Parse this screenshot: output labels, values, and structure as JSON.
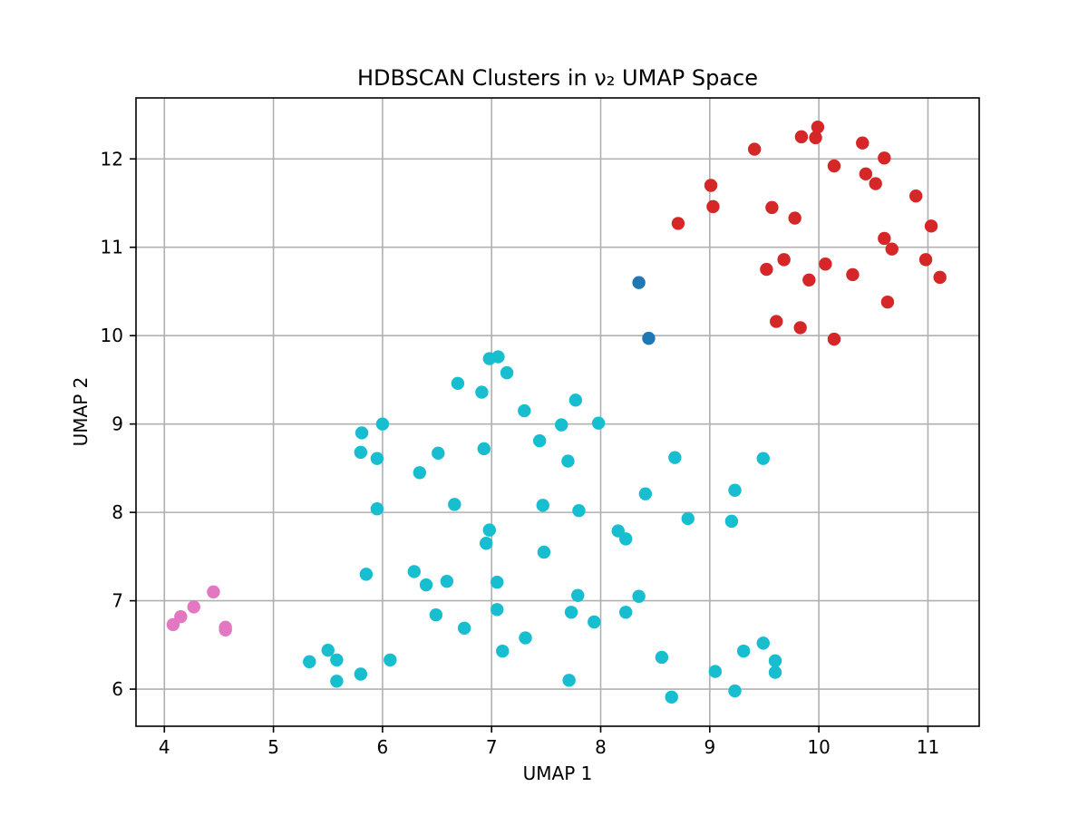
{
  "chart_data": {
    "type": "scatter",
    "title": "HDBSCAN Clusters in ν₂ UMAP Space",
    "xlabel": "UMAP 1",
    "ylabel": "UMAP 2",
    "xlim": [
      3.74,
      11.47
    ],
    "ylim": [
      5.58,
      12.69
    ],
    "xticks": [
      4,
      5,
      6,
      7,
      8,
      9,
      10,
      11
    ],
    "yticks": [
      6,
      7,
      8,
      9,
      10,
      11,
      12
    ],
    "grid": true,
    "legend": "none",
    "series": [
      {
        "color": "#1f77b4",
        "points": [
          [
            8.35,
            10.6
          ],
          [
            8.44,
            9.97
          ]
        ]
      },
      {
        "color": "#d62728",
        "points": [
          [
            9.99,
            12.36
          ],
          [
            9.84,
            12.25
          ],
          [
            9.97,
            12.24
          ],
          [
            10.4,
            12.18
          ],
          [
            9.41,
            12.11
          ],
          [
            10.6,
            12.01
          ],
          [
            10.14,
            11.92
          ],
          [
            10.43,
            11.83
          ],
          [
            10.52,
            11.72
          ],
          [
            9.01,
            11.7
          ],
          [
            10.89,
            11.58
          ],
          [
            9.03,
            11.46
          ],
          [
            9.57,
            11.45
          ],
          [
            9.78,
            11.33
          ],
          [
            8.71,
            11.27
          ],
          [
            11.03,
            11.24
          ],
          [
            10.6,
            11.1
          ],
          [
            10.67,
            10.98
          ],
          [
            9.68,
            10.86
          ],
          [
            10.98,
            10.86
          ],
          [
            10.06,
            10.81
          ],
          [
            9.52,
            10.75
          ],
          [
            10.31,
            10.69
          ],
          [
            11.11,
            10.66
          ],
          [
            9.91,
            10.63
          ],
          [
            10.63,
            10.38
          ],
          [
            9.61,
            10.16
          ],
          [
            9.83,
            10.09
          ],
          [
            10.14,
            9.96
          ]
        ]
      },
      {
        "color": "#e377c2",
        "points": [
          [
            4.45,
            7.1
          ],
          [
            4.27,
            6.93
          ],
          [
            4.15,
            6.82
          ],
          [
            4.08,
            6.73
          ],
          [
            4.56,
            6.7
          ],
          [
            4.56,
            6.67
          ]
        ]
      },
      {
        "color": "#17becf",
        "points": [
          [
            7.06,
            9.76
          ],
          [
            6.98,
            9.74
          ],
          [
            7.14,
            9.58
          ],
          [
            6.69,
            9.46
          ],
          [
            6.91,
            9.36
          ],
          [
            7.77,
            9.27
          ],
          [
            7.3,
            9.15
          ],
          [
            6.0,
            9.0
          ],
          [
            7.64,
            8.99
          ],
          [
            7.98,
            9.01
          ],
          [
            5.81,
            8.9
          ],
          [
            7.44,
            8.81
          ],
          [
            6.93,
            8.72
          ],
          [
            5.8,
            8.68
          ],
          [
            6.51,
            8.67
          ],
          [
            5.95,
            8.61
          ],
          [
            8.68,
            8.62
          ],
          [
            9.49,
            8.61
          ],
          [
            7.7,
            8.58
          ],
          [
            6.34,
            8.45
          ],
          [
            9.23,
            8.25
          ],
          [
            8.41,
            8.21
          ],
          [
            6.66,
            8.09
          ],
          [
            7.47,
            8.08
          ],
          [
            5.95,
            8.04
          ],
          [
            7.8,
            8.02
          ],
          [
            8.8,
            7.93
          ],
          [
            9.2,
            7.9
          ],
          [
            6.98,
            7.8
          ],
          [
            8.16,
            7.79
          ],
          [
            8.23,
            7.7
          ],
          [
            6.95,
            7.65
          ],
          [
            7.48,
            7.55
          ],
          [
            6.29,
            7.33
          ],
          [
            5.85,
            7.3
          ],
          [
            6.59,
            7.22
          ],
          [
            7.05,
            7.21
          ],
          [
            6.4,
            7.18
          ],
          [
            7.79,
            7.06
          ],
          [
            8.35,
            7.05
          ],
          [
            7.05,
            6.9
          ],
          [
            7.73,
            6.87
          ],
          [
            8.23,
            6.87
          ],
          [
            6.49,
            6.84
          ],
          [
            7.94,
            6.76
          ],
          [
            6.75,
            6.69
          ],
          [
            7.31,
            6.58
          ],
          [
            9.49,
            6.52
          ],
          [
            5.5,
            6.44
          ],
          [
            9.31,
            6.43
          ],
          [
            7.1,
            6.43
          ],
          [
            8.56,
            6.36
          ],
          [
            5.58,
            6.33
          ],
          [
            6.07,
            6.33
          ],
          [
            9.6,
            6.32
          ],
          [
            5.33,
            6.31
          ],
          [
            9.05,
            6.2
          ],
          [
            9.6,
            6.19
          ],
          [
            5.8,
            6.17
          ],
          [
            5.58,
            6.09
          ],
          [
            7.71,
            6.1
          ],
          [
            9.23,
            5.98
          ],
          [
            8.65,
            5.91
          ]
        ]
      }
    ]
  }
}
